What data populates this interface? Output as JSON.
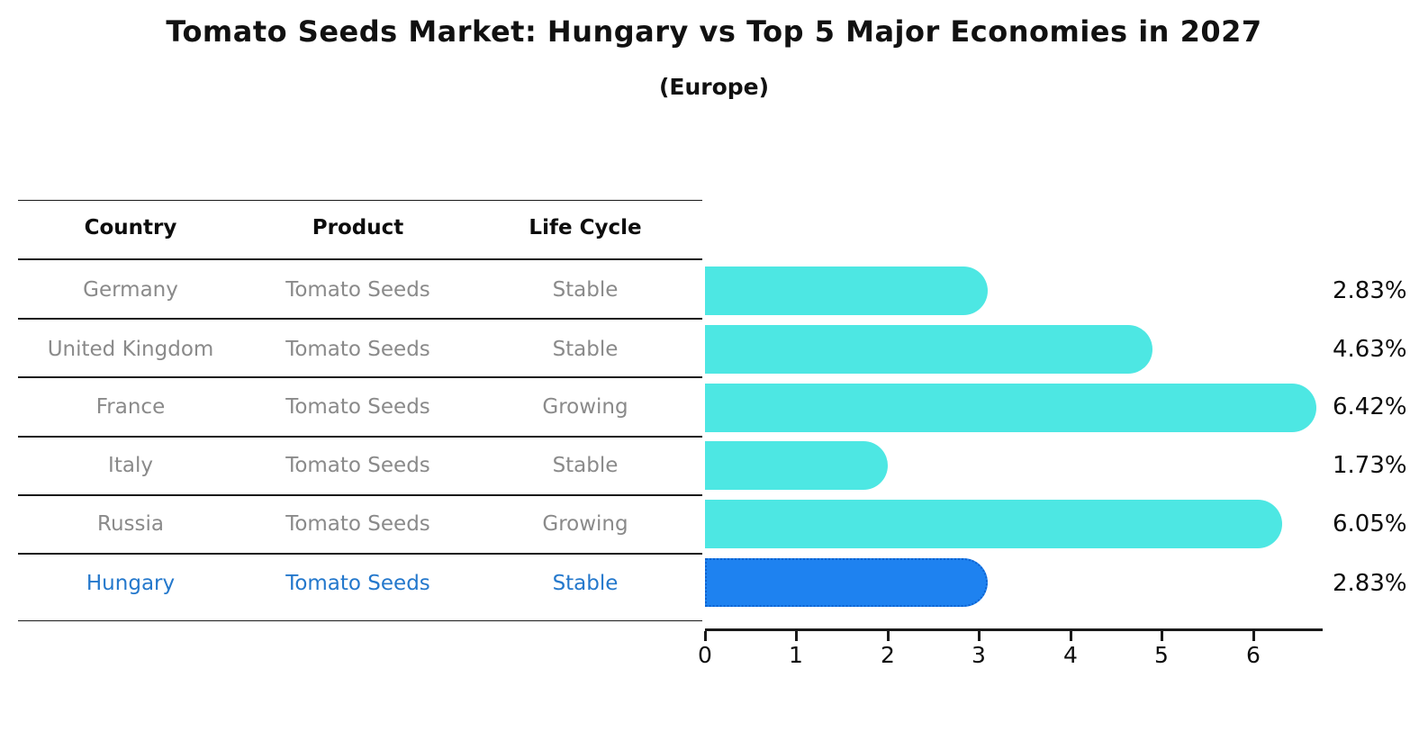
{
  "title": "Tomato Seeds Market: Hungary vs Top 5 Major Economies in 2027",
  "subtitle": "(Europe)",
  "table": {
    "headers": [
      "Country",
      "Product",
      "Life Cycle"
    ],
    "rows": [
      {
        "country": "Germany",
        "product": "Tomato Seeds",
        "life_cycle": "Stable"
      },
      {
        "country": "United Kingdom",
        "product": "Tomato Seeds",
        "life_cycle": "Stable"
      },
      {
        "country": "France",
        "product": "Tomato Seeds",
        "life_cycle": "Growing"
      },
      {
        "country": "Italy",
        "product": "Tomato Seeds",
        "life_cycle": "Stable"
      },
      {
        "country": "Russia",
        "product": "Tomato Seeds",
        "life_cycle": "Growing"
      },
      {
        "country": "Hungary",
        "product": "Tomato Seeds",
        "life_cycle": "Stable"
      }
    ],
    "highlight_row": "Hungary"
  },
  "chart_data": {
    "type": "bar",
    "orientation": "horizontal",
    "title": "Tomato Seeds Market: Hungary vs Top 5 Major Economies in 2027",
    "subtitle": "(Europe)",
    "categories": [
      "Germany",
      "United Kingdom",
      "France",
      "Italy",
      "Russia",
      "Hungary"
    ],
    "values": [
      2.83,
      4.63,
      6.42,
      1.73,
      6.05,
      2.83
    ],
    "value_labels": [
      "2.83%",
      "4.63%",
      "6.42%",
      "1.73%",
      "6.05%",
      "2.83%"
    ],
    "unit": "%",
    "x_tick_labels": [
      "0",
      "1",
      "2",
      "3",
      "4",
      "5",
      "6"
    ],
    "xlim": [
      0,
      6.75
    ],
    "grid": false,
    "legend": false,
    "highlight_index": 5,
    "bar_color": "#4DE7E3",
    "highlight_bar_color": "#1E82F0",
    "highlight_bar_edge_color": "#0E62CF",
    "highlight_text_color": "#2478CC"
  }
}
